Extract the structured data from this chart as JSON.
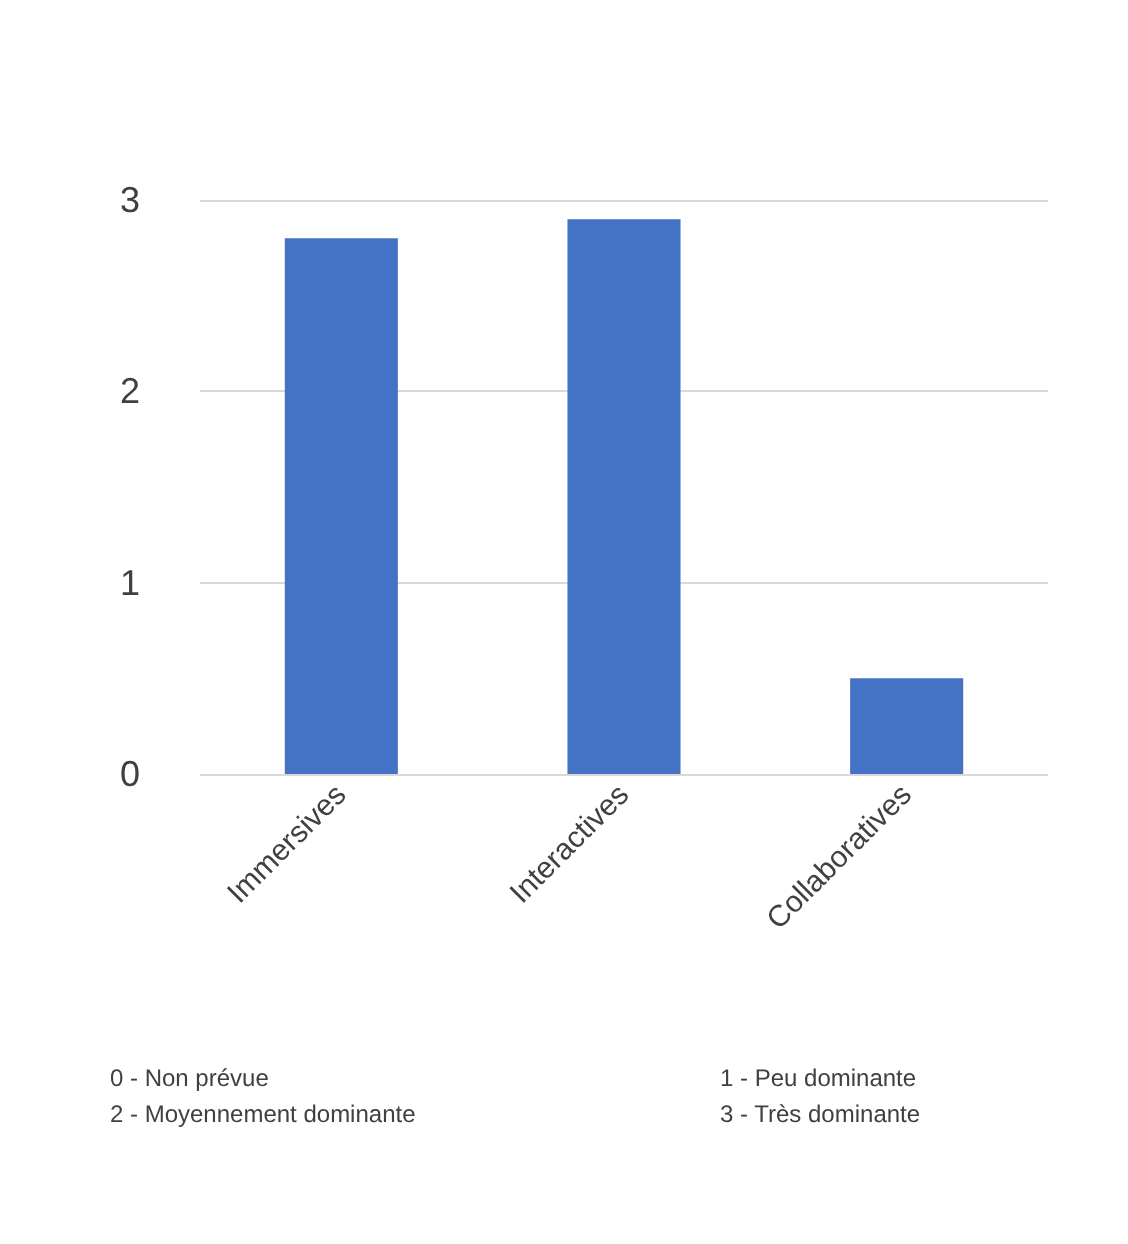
{
  "chart_data": {
    "type": "bar",
    "categories": [
      "Immersives",
      "Interactives",
      "Collaboratives"
    ],
    "values": [
      2.8,
      2.9,
      0.5
    ],
    "color": "#4472c4",
    "ylim": [
      0,
      3
    ],
    "yticks": [
      0,
      1,
      2,
      3
    ],
    "grid": "y",
    "annotations": [
      "0 - Non prévue",
      "1 - Peu dominante",
      "2 - Moyennement dominante",
      "3 - Très dominante"
    ]
  }
}
